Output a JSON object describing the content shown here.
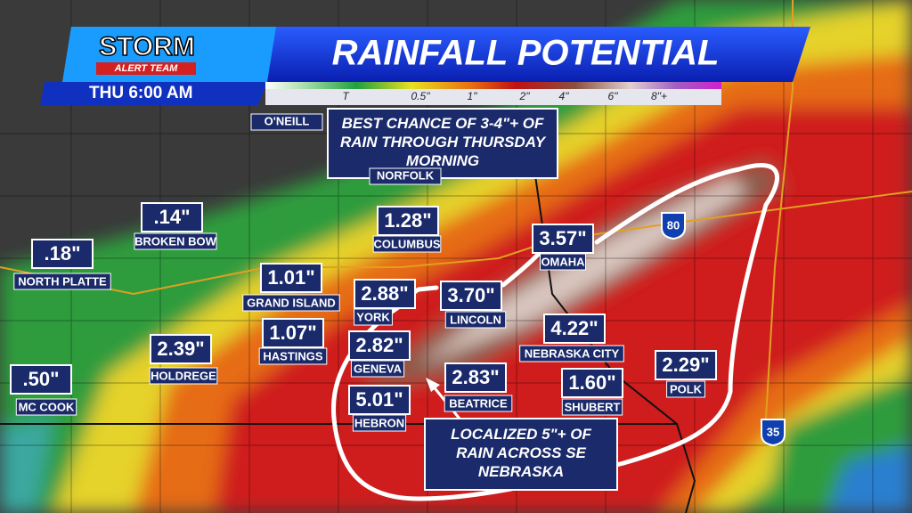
{
  "header": {
    "logo_top": "STORM",
    "logo_bottom": "ALERT TEAM",
    "title": "RAINFALL POTENTIAL",
    "time": "THU 6:00 AM"
  },
  "legend": {
    "labels": [
      "T",
      "0.5\"",
      "1\"",
      "2\"",
      "4\"",
      "6\"",
      "8\"+"
    ]
  },
  "callouts": [
    "BEST CHANCE OF 3-4\"+ OF RAIN THROUGH THURSDAY MORNING",
    "LOCALIZED 5\"+ OF RAIN ACROSS SE NEBRASKA"
  ],
  "towns": [
    "O'NEILL",
    "NORFOLK"
  ],
  "highways": [
    "80",
    "35"
  ],
  "locations": [
    {
      "amount": ".18\"",
      "name": "NORTH PLATTE"
    },
    {
      "amount": ".14\"",
      "name": "BROKEN BOW"
    },
    {
      "amount": "1.28\"",
      "name": "COLUMBUS"
    },
    {
      "amount": ".50\"",
      "name": "MC COOK"
    },
    {
      "amount": "2.39\"",
      "name": "HOLDREGE"
    },
    {
      "amount": "1.01\"",
      "name": "GRAND ISLAND"
    },
    {
      "amount": "1.07\"",
      "name": "HASTINGS"
    },
    {
      "amount": "2.88\"",
      "name": "YORK"
    },
    {
      "amount": "3.70\"",
      "name": "LINCOLN"
    },
    {
      "amount": "3.57\"",
      "name": "OMAHA"
    },
    {
      "amount": "2.82\"",
      "name": "GENEVA"
    },
    {
      "amount": "2.83\"",
      "name": "BEATRICE"
    },
    {
      "amount": "5.01\"",
      "name": "HEBRON"
    },
    {
      "amount": "4.22\"",
      "name": "NEBRASKA CITY"
    },
    {
      "amount": "1.60\"",
      "name": "SHUBERT"
    },
    {
      "amount": "2.29\"",
      "name": "POLK"
    }
  ]
}
